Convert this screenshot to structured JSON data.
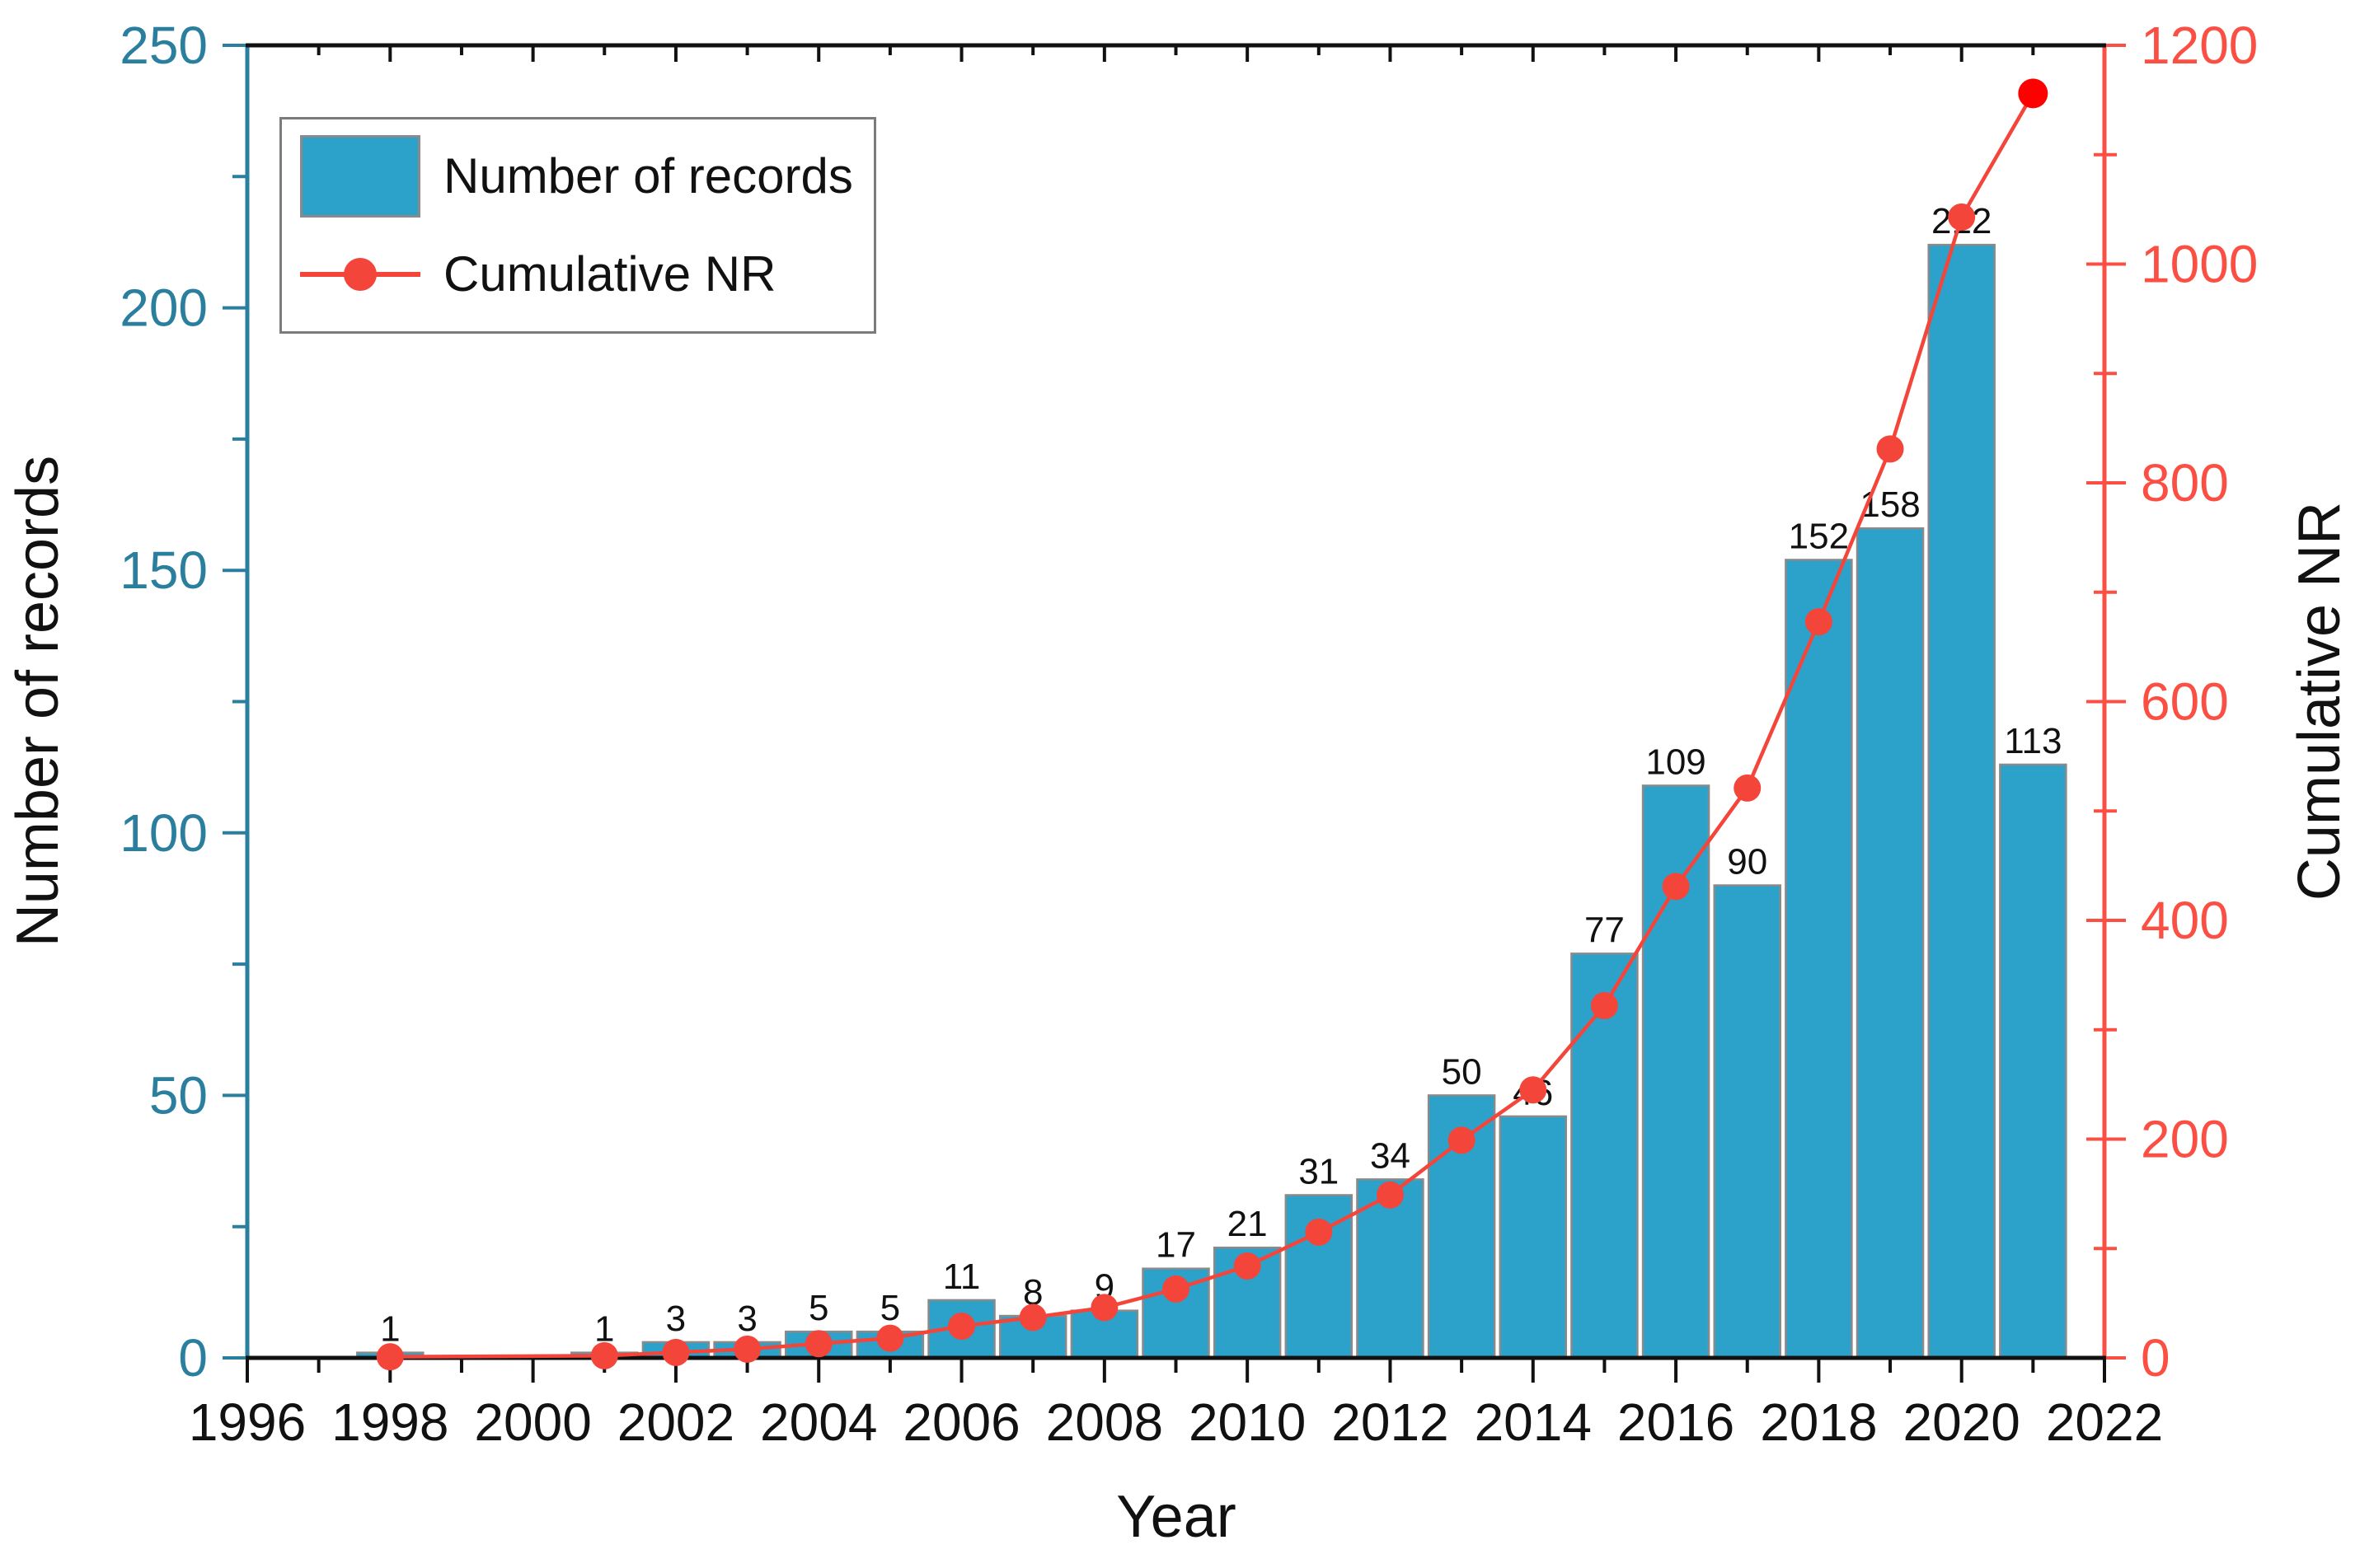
{
  "chart_data": {
    "type": "bar+line dual-axis",
    "title": "",
    "xlabel": "Year",
    "ylabel_left": "Number of records",
    "ylabel_right": "Cumulative NR",
    "x_axis": {
      "range": [
        1996,
        2022
      ],
      "major_tick_labels": [
        "1996",
        "1998",
        "2000",
        "2002",
        "2004",
        "2006",
        "2008",
        "2010",
        "2012",
        "2014",
        "2016",
        "2018",
        "2020",
        "2022"
      ],
      "minor_tick_every_year": true
    },
    "left_axis": {
      "range": [
        0,
        250
      ],
      "major_ticks": [
        0,
        50,
        100,
        150,
        200,
        250
      ],
      "minor_step": 25,
      "color": "#2A7F9E"
    },
    "right_axis": {
      "range": [
        0,
        1200
      ],
      "major_ticks": [
        0,
        200,
        400,
        600,
        800,
        1000,
        1200
      ],
      "minor_step": 100,
      "color": "#FB4F44"
    },
    "grid": false,
    "legend_position": "top-left",
    "series": [
      {
        "name": "Number of records",
        "type": "bar",
        "fill": "#2CA2CB",
        "edge": "#8A8A8A",
        "label_color": "#111111",
        "points": [
          {
            "year": 1998,
            "value": 1
          },
          {
            "year": 2001,
            "value": 1
          },
          {
            "year": 2002,
            "value": 3
          },
          {
            "year": 2003,
            "value": 3
          },
          {
            "year": 2004,
            "value": 5
          },
          {
            "year": 2005,
            "value": 5
          },
          {
            "year": 2006,
            "value": 11
          },
          {
            "year": 2007,
            "value": 8
          },
          {
            "year": 2008,
            "value": 9
          },
          {
            "year": 2009,
            "value": 17
          },
          {
            "year": 2010,
            "value": 21
          },
          {
            "year": 2011,
            "value": 31
          },
          {
            "year": 2012,
            "value": 34
          },
          {
            "year": 2013,
            "value": 50
          },
          {
            "year": 2014,
            "value": 46
          },
          {
            "year": 2015,
            "value": 77
          },
          {
            "year": 2016,
            "value": 109
          },
          {
            "year": 2017,
            "value": 90
          },
          {
            "year": 2018,
            "value": 152
          },
          {
            "year": 2019,
            "value": 158
          },
          {
            "year": 2020,
            "value": 212
          },
          {
            "year": 2021,
            "value": 113
          }
        ]
      },
      {
        "name": "Cumulative NR",
        "type": "line",
        "color": "#F4453B",
        "marker_color": "#F4453B",
        "last_marker_color": "#FF0000",
        "points": [
          {
            "year": 1998,
            "value": 1
          },
          {
            "year": 2001,
            "value": 2
          },
          {
            "year": 2002,
            "value": 5
          },
          {
            "year": 2003,
            "value": 8
          },
          {
            "year": 2004,
            "value": 13
          },
          {
            "year": 2005,
            "value": 18
          },
          {
            "year": 2006,
            "value": 29
          },
          {
            "year": 2007,
            "value": 37
          },
          {
            "year": 2008,
            "value": 46
          },
          {
            "year": 2009,
            "value": 63
          },
          {
            "year": 2010,
            "value": 84
          },
          {
            "year": 2011,
            "value": 115
          },
          {
            "year": 2012,
            "value": 149
          },
          {
            "year": 2013,
            "value": 199
          },
          {
            "year": 2014,
            "value": 245
          },
          {
            "year": 2015,
            "value": 322
          },
          {
            "year": 2016,
            "value": 431
          },
          {
            "year": 2017,
            "value": 521
          },
          {
            "year": 2018,
            "value": 673
          },
          {
            "year": 2019,
            "value": 831
          },
          {
            "year": 2020,
            "value": 1043
          },
          {
            "year": 2021,
            "value": 1156
          }
        ]
      }
    ],
    "colors": {
      "spine_black": "#111111",
      "text": "#111111",
      "legend_border": "#7B7B7B"
    }
  }
}
